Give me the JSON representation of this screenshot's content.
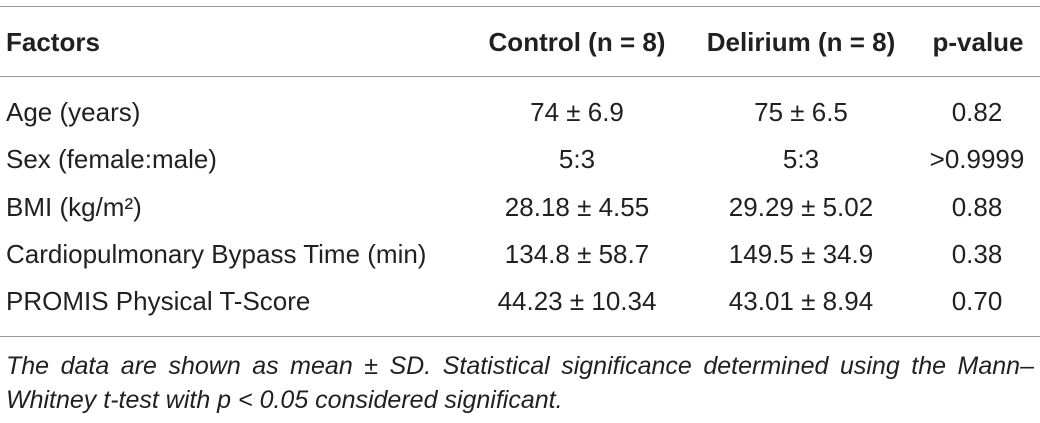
{
  "table": {
    "headers": {
      "factor": "Factors",
      "control": "Control (n = 8)",
      "delirium": "Delirium (n = 8)",
      "pvalue": "p-value"
    },
    "rows": [
      {
        "factor": "Age (years)",
        "control": "74 ± 6.9",
        "delirium": "75 ± 6.5",
        "pvalue": "0.82"
      },
      {
        "factor": "Sex (female:male)",
        "control": "5:3",
        "delirium": "5:3",
        "pvalue": ">0.9999"
      },
      {
        "factor": "BMI (kg/m²)",
        "control": "28.18 ± 4.55",
        "delirium": "29.29 ± 5.02",
        "pvalue": "0.88"
      },
      {
        "factor": "Cardiopulmonary Bypass Time (min)",
        "control": "134.8 ± 58.7",
        "delirium": "149.5 ± 34.9",
        "pvalue": "0.38"
      },
      {
        "factor": "PROMIS Physical T-Score",
        "control": "44.23 ± 10.34",
        "delirium": "43.01 ± 8.94",
        "pvalue": "0.70"
      }
    ],
    "footnote": "The data are shown as mean ± SD. Statistical significance determined using the Mann–Whitney t-test with p < 0.05 considered significant."
  }
}
